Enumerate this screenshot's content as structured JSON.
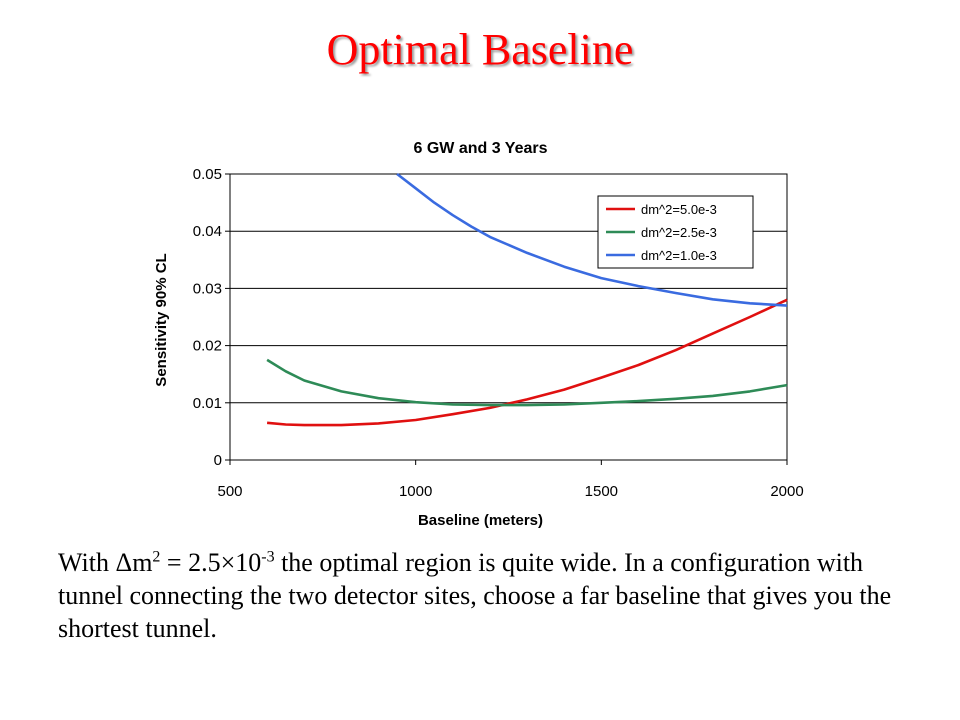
{
  "slide": {
    "title": "Optimal Baseline",
    "title_color": "#ff0000"
  },
  "chart_data": {
    "type": "line",
    "title": "6 GW and 3 Years",
    "xlabel": "Baseline (meters)",
    "ylabel": "Sensitivity 90% CL",
    "xlim": [
      500,
      2000
    ],
    "ylim": [
      0,
      0.05
    ],
    "x_ticks": [
      "500",
      "1000",
      "1500",
      "2000"
    ],
    "y_ticks": [
      "0",
      "0.01",
      "0.02",
      "0.03",
      "0.04",
      "0.05"
    ],
    "grid": "horizontal",
    "legend_position": "top-right",
    "series": [
      {
        "name": "dm^2=5.0e-3",
        "color": "#e01010",
        "x": [
          600,
          650,
          700,
          750,
          800,
          900,
          1000,
          1100,
          1200,
          1300,
          1400,
          1500,
          1600,
          1700,
          1800,
          1900,
          2000
        ],
        "y": [
          0.0065,
          0.0062,
          0.0061,
          0.0061,
          0.0061,
          0.0064,
          0.007,
          0.008,
          0.0091,
          0.0106,
          0.0123,
          0.0144,
          0.0166,
          0.0192,
          0.0221,
          0.025,
          0.028
        ]
      },
      {
        "name": "dm^2=2.5e-3",
        "color": "#2e8b57",
        "x": [
          600,
          650,
          700,
          800,
          900,
          1000,
          1100,
          1200,
          1300,
          1400,
          1500,
          1600,
          1700,
          1800,
          1900,
          2000
        ],
        "y": [
          0.0175,
          0.0155,
          0.0139,
          0.012,
          0.0108,
          0.0101,
          0.0097,
          0.0096,
          0.0096,
          0.0097,
          0.01,
          0.0103,
          0.0107,
          0.0112,
          0.012,
          0.0131
        ]
      },
      {
        "name": "dm^2=1.0e-3",
        "color": "#3a6be0",
        "x": [
          950,
          1000,
          1050,
          1100,
          1150,
          1200,
          1300,
          1400,
          1500,
          1600,
          1700,
          1800,
          1900,
          2000
        ],
        "y": [
          0.05,
          0.0475,
          0.045,
          0.0428,
          0.0408,
          0.039,
          0.0362,
          0.0338,
          0.0318,
          0.0304,
          0.0292,
          0.0281,
          0.0274,
          0.027
        ]
      }
    ]
  },
  "caption": {
    "t1": "With ",
    "delta": "Δ",
    "t2": "m",
    "sup1": "2",
    "t3": " = 2.5×10",
    "sup2": "-3",
    "t4": " the optimal region is quite wide.  In a configuration with tunnel connecting the two detector sites, choose a far baseline that gives you the shortest tunnel."
  }
}
